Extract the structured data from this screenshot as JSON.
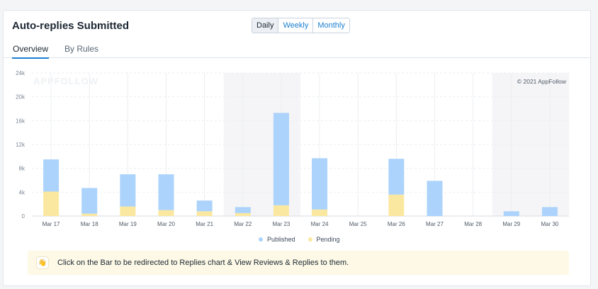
{
  "title": "Auto-replies Submitted",
  "period_toggle": {
    "options": [
      "Daily",
      "Weekly",
      "Monthly"
    ],
    "selected": "Daily"
  },
  "tabs": [
    {
      "label": "Overview",
      "active": true
    },
    {
      "label": "By Rules",
      "active": false
    }
  ],
  "watermark": "APPFOLLOW",
  "copyright": "© 2021 AppFollow",
  "chart_data": {
    "type": "bar",
    "stacked": true,
    "categories": [
      "Mar 17",
      "Mar 18",
      "Mar 19",
      "Mar 20",
      "Mar 21",
      "Mar 22",
      "Mar 23",
      "Mar 24",
      "Mar 25",
      "Mar 26",
      "Mar 27",
      "Mar 28",
      "Mar 29",
      "Mar 30"
    ],
    "series": [
      {
        "name": "Pending",
        "color": "#fbe8a0",
        "values": [
          4100,
          400,
          1600,
          1000,
          800,
          500,
          1800,
          1100,
          0,
          3600,
          0,
          0,
          0,
          0
        ]
      },
      {
        "name": "Published",
        "color": "#acd3fb",
        "values": [
          5400,
          4300,
          5400,
          6000,
          1800,
          1000,
          15500,
          8600,
          0,
          6000,
          5900,
          0,
          800,
          1500
        ]
      }
    ],
    "y_ticks": [
      "0",
      "4k",
      "8k",
      "12k",
      "16k",
      "20k",
      "24k"
    ],
    "ylim": [
      0,
      24000
    ],
    "shaded_ranges": [
      [
        "Mar 22",
        "Mar 23"
      ],
      [
        "Mar 29",
        "Mar 30"
      ]
    ],
    "grid": true
  },
  "legend": [
    {
      "label": "Published",
      "color": "#acd3fb"
    },
    {
      "label": "Pending",
      "color": "#fbe8a0"
    }
  ],
  "banner": {
    "icon": "waving-hand-icon",
    "text": "Click on the Bar to be redirected to Replies chart & View Reviews & Replies to them."
  }
}
